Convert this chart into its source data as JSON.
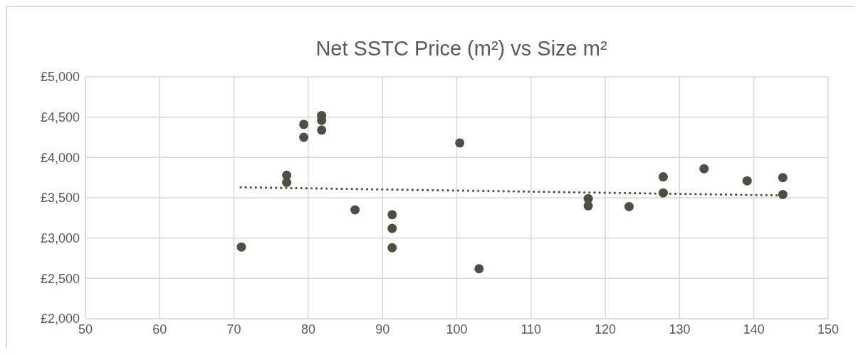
{
  "chart_data": {
    "type": "scatter",
    "title": "Net SSTC Price (m²) vs Size m²",
    "xlim": [
      50,
      150
    ],
    "xticks": [
      50,
      60,
      70,
      80,
      90,
      100,
      110,
      120,
      130,
      140,
      150
    ],
    "ylim": [
      2000,
      5000
    ],
    "yticks": [
      {
        "value": 2000,
        "label": "£2,000"
      },
      {
        "value": 2500,
        "label": "£2,500"
      },
      {
        "value": 3000,
        "label": "£3,000"
      },
      {
        "value": 3500,
        "label": "£3,500"
      },
      {
        "value": 4000,
        "label": "£4,000"
      },
      {
        "value": 4500,
        "label": "£4,500"
      },
      {
        "value": 5000,
        "label": "£5,000"
      }
    ],
    "grid": true,
    "marker": "circle",
    "series": [
      {
        "color": "#4a5042",
        "x": [
          71,
          77.1,
          77.1,
          79.4,
          79.4,
          81.8,
          81.8,
          81.8,
          86.3,
          91.3,
          91.3,
          91.3,
          100.4,
          103,
          117.7,
          117.7,
          123.2,
          127.8,
          127.8,
          133.3,
          139.1,
          143.9,
          143.9
        ],
        "values": [
          2890,
          3780,
          3690,
          4410,
          4250,
          4520,
          4460,
          4340,
          3350,
          3290,
          3120,
          2880,
          4180,
          2620,
          3490,
          3400,
          3390,
          3760,
          3560,
          3860,
          3710,
          3750,
          3540
        ]
      },
      {
        "type": "line",
        "color": "#4a5042",
        "line_style": "dotted",
        "marker": "none",
        "x": [
          70.9,
          143.5
        ],
        "values": [
          3630,
          3530
        ]
      }
    ]
  }
}
